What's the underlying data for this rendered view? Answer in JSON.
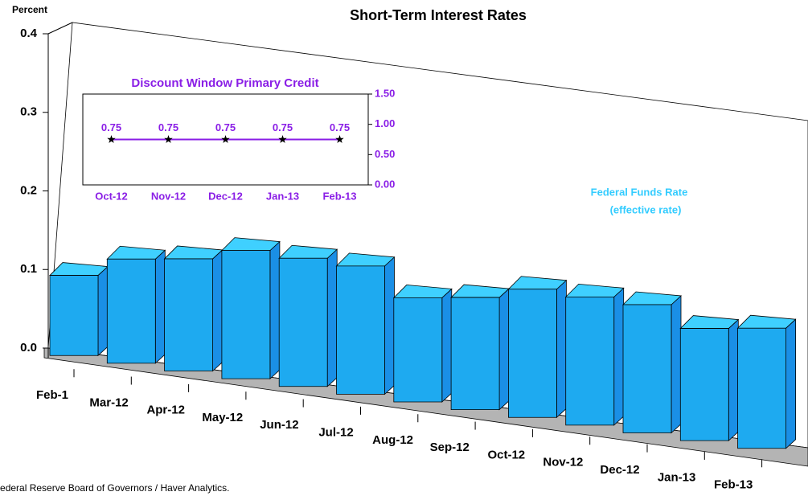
{
  "chart_data": [
    {
      "type": "bar3d",
      "title": "Short-Term Interest Rates",
      "ylabel": "Percent",
      "categories": [
        "Feb-1",
        "Mar-12",
        "Apr-12",
        "May-12",
        "Jun-12",
        "Jul-12",
        "Aug-12",
        "Sep-12",
        "Oct-12",
        "Nov-12",
        "Dec-12",
        "Jan-13",
        "Feb-13"
      ],
      "series": [
        {
          "name": "Federal Funds Rate",
          "color": "#1eaaf0",
          "values": [
            0.1,
            0.13,
            0.14,
            0.16,
            0.16,
            0.16,
            0.13,
            0.14,
            0.16,
            0.16,
            0.16,
            0.14,
            0.15
          ]
        }
      ],
      "annotations": [
        "Federal Funds Rate",
        "(effective rate)"
      ],
      "source": "Source: Federal Reserve Board of Governors / Haver Analytics.",
      "ylim": [
        0,
        0.4
      ],
      "yticks": [
        {
          "value": 0,
          "label": "0.0"
        },
        0.1,
        0.2,
        0.3,
        0.4
      ]
    },
    {
      "type": "line",
      "title": "Discount Window Primary Credit",
      "categories": [
        "Oct-12",
        "Nov-12",
        "Dec-12",
        "Jan-13",
        "Feb-13"
      ],
      "series": [
        {
          "name": "Discount Window Primary Credit",
          "color": "#8a1ee6",
          "axis": "y2",
          "values": [
            0.75,
            0.75,
            0.75,
            0.75,
            0.75
          ]
        }
      ],
      "y2lim": [
        0,
        1.5
      ],
      "y2ticks": [
        {
          "value": 0,
          "label": "0.00"
        },
        {
          "value": 0.5,
          "label": "0.50"
        },
        {
          "value": 1,
          "label": "1.00"
        },
        {
          "value": 1.5,
          "label": "1.50"
        }
      ]
    }
  ]
}
